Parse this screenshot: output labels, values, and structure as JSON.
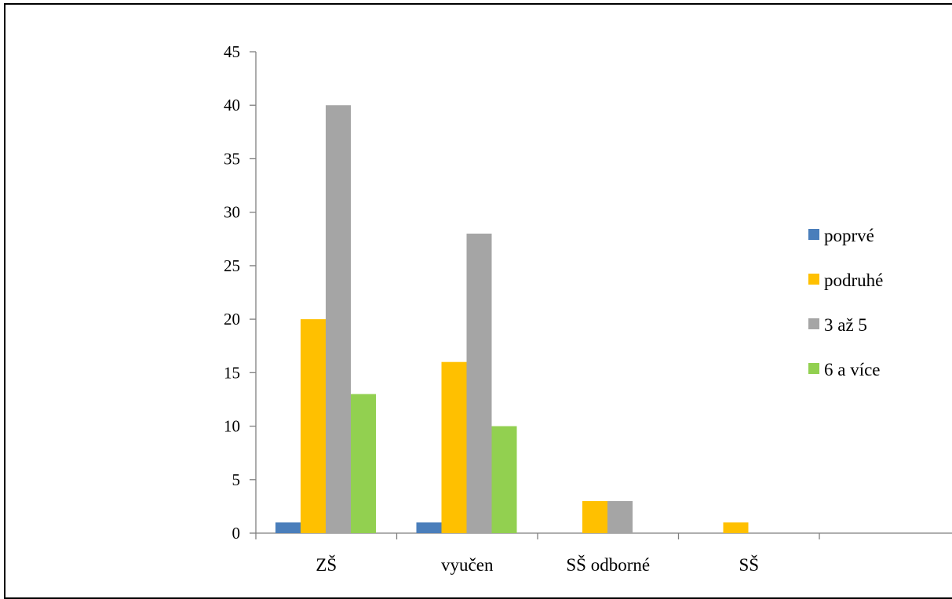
{
  "chart_data": {
    "type": "bar",
    "categories": [
      "ZŠ",
      "vyučen",
      "SŠ odborné",
      "SŠ",
      ""
    ],
    "series": [
      {
        "name": "poprvé",
        "color": "#4a7ebb",
        "values": [
          1,
          1,
          0,
          0,
          0
        ]
      },
      {
        "name": "podruhé",
        "color": "#ffc000",
        "values": [
          20,
          16,
          3,
          1,
          0
        ]
      },
      {
        "name": "3 až 5",
        "color": "#a5a5a5",
        "values": [
          40,
          28,
          3,
          0,
          0
        ]
      },
      {
        "name": "6 a více",
        "color": "#92d050",
        "values": [
          13,
          10,
          0,
          0,
          0
        ]
      }
    ],
    "ylim": [
      0,
      45
    ],
    "yticks": [
      0,
      5,
      10,
      15,
      20,
      25,
      30,
      35,
      40,
      45
    ],
    "grid": false,
    "legend_position": "right"
  }
}
